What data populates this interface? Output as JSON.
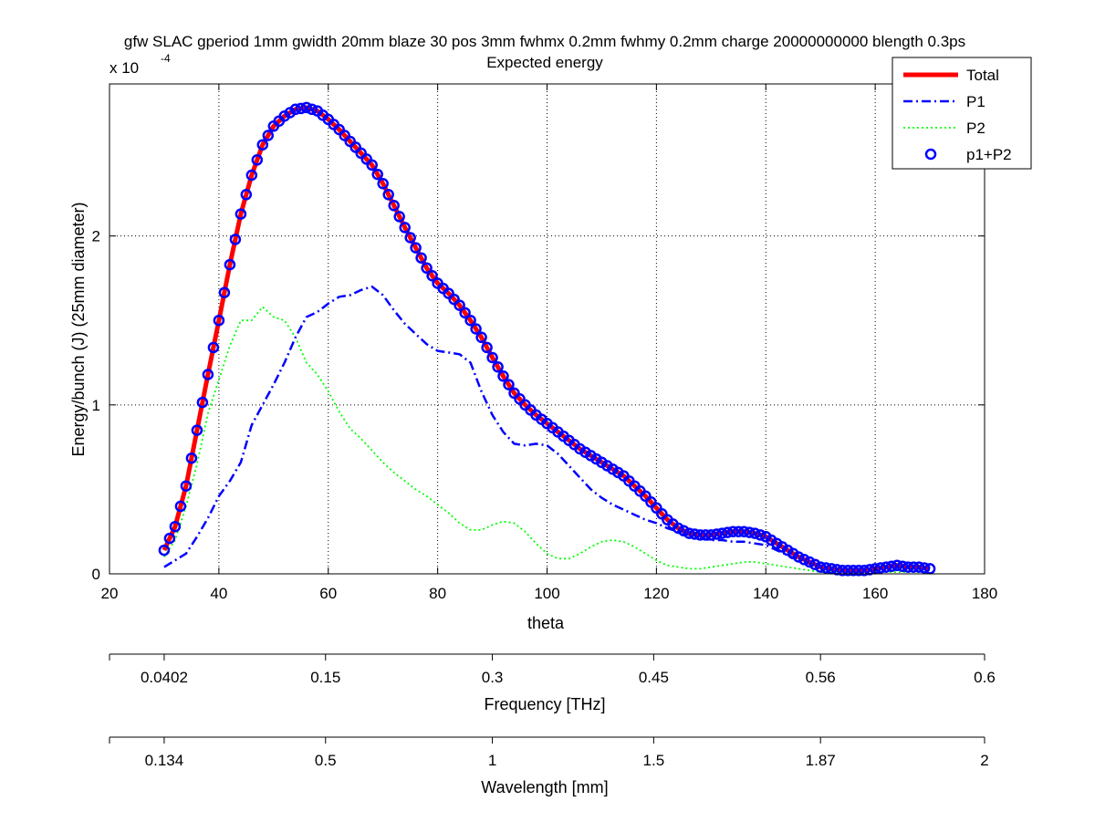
{
  "chart_data": {
    "type": "line",
    "title": "gfw SLAC gperiod 1mm gwidth 20mm blaze 30 pos 3mm fwhmx 0.2mm fwhmy 0.2mm charge 20000000000 blength 0.3ps",
    "subtitle": "Expected energy",
    "xlabel": "theta",
    "ylabel": "Energy/bunch (J) (25mm diameter)",
    "y_exponent_label": "x 10",
    "y_exponent_power": "-4",
    "xlim": [
      20,
      180
    ],
    "ylim": [
      0,
      2.9
    ],
    "y_scale_multiplier": 0.0001,
    "grid": true,
    "legend_position": "top-right",
    "x_ticks": [
      "20",
      "40",
      "60",
      "80",
      "100",
      "120",
      "140",
      "160",
      "180"
    ],
    "y_ticks": [
      "0",
      "1",
      "2"
    ],
    "secondary_axes": [
      {
        "label": "Frequency [THz]",
        "ticks": [
          {
            "theta": 30,
            "label": "0.0402"
          },
          {
            "theta": 59.5,
            "label": "0.15"
          },
          {
            "theta": 90,
            "label": "0.3"
          },
          {
            "theta": 119.5,
            "label": "0.45"
          },
          {
            "theta": 150,
            "label": "0.56"
          },
          {
            "theta": 180,
            "label": "0.6"
          }
        ]
      },
      {
        "label": "Wavelength [mm]",
        "ticks": [
          {
            "theta": 30,
            "label": "0.134"
          },
          {
            "theta": 59.5,
            "label": "0.5"
          },
          {
            "theta": 90,
            "label": "1"
          },
          {
            "theta": 119.5,
            "label": "1.5"
          },
          {
            "theta": 150,
            "label": "1.87"
          },
          {
            "theta": 180,
            "label": "2"
          }
        ]
      }
    ],
    "series": [
      {
        "name": "Total",
        "color": "#ff0000",
        "style": "solid",
        "points": [
          [
            30,
            0.14
          ],
          [
            32,
            0.28
          ],
          [
            34,
            0.52
          ],
          [
            36,
            0.85
          ],
          [
            38,
            1.18
          ],
          [
            40,
            1.5
          ],
          [
            42,
            1.83
          ],
          [
            44,
            2.13
          ],
          [
            46,
            2.36
          ],
          [
            48,
            2.54
          ],
          [
            50,
            2.65
          ],
          [
            52,
            2.71
          ],
          [
            54,
            2.75
          ],
          [
            56,
            2.76
          ],
          [
            58,
            2.74
          ],
          [
            60,
            2.69
          ],
          [
            62,
            2.63
          ],
          [
            64,
            2.56
          ],
          [
            66,
            2.49
          ],
          [
            68,
            2.42
          ],
          [
            70,
            2.31
          ],
          [
            72,
            2.18
          ],
          [
            74,
            2.05
          ],
          [
            76,
            1.93
          ],
          [
            78,
            1.81
          ],
          [
            80,
            1.72
          ],
          [
            82,
            1.66
          ],
          [
            84,
            1.59
          ],
          [
            86,
            1.5
          ],
          [
            88,
            1.4
          ],
          [
            90,
            1.28
          ],
          [
            92,
            1.17
          ],
          [
            94,
            1.07
          ],
          [
            96,
            1.0
          ],
          [
            98,
            0.94
          ],
          [
            100,
            0.89
          ],
          [
            102,
            0.84
          ],
          [
            104,
            0.79
          ],
          [
            106,
            0.74
          ],
          [
            108,
            0.7
          ],
          [
            110,
            0.66
          ],
          [
            112,
            0.62
          ],
          [
            114,
            0.58
          ],
          [
            116,
            0.52
          ],
          [
            118,
            0.46
          ],
          [
            120,
            0.39
          ],
          [
            122,
            0.32
          ],
          [
            124,
            0.27
          ],
          [
            126,
            0.24
          ],
          [
            128,
            0.23
          ],
          [
            130,
            0.23
          ],
          [
            132,
            0.24
          ],
          [
            134,
            0.25
          ],
          [
            136,
            0.25
          ],
          [
            138,
            0.24
          ],
          [
            140,
            0.22
          ],
          [
            142,
            0.18
          ],
          [
            144,
            0.14
          ],
          [
            146,
            0.1
          ],
          [
            148,
            0.07
          ],
          [
            150,
            0.04
          ],
          [
            152,
            0.03
          ],
          [
            154,
            0.02
          ],
          [
            156,
            0.02
          ],
          [
            158,
            0.02
          ],
          [
            160,
            0.03
          ],
          [
            162,
            0.04
          ],
          [
            164,
            0.05
          ],
          [
            166,
            0.04
          ],
          [
            168,
            0.04
          ],
          [
            170,
            0.03
          ]
        ]
      },
      {
        "name": "P1",
        "color": "#0000ff",
        "style": "dashdot",
        "points": [
          [
            30,
            0.04
          ],
          [
            32,
            0.08
          ],
          [
            34,
            0.12
          ],
          [
            36,
            0.22
          ],
          [
            38,
            0.33
          ],
          [
            40,
            0.46
          ],
          [
            42,
            0.55
          ],
          [
            44,
            0.66
          ],
          [
            46,
            0.88
          ],
          [
            48,
            1.0
          ],
          [
            50,
            1.12
          ],
          [
            52,
            1.25
          ],
          [
            54,
            1.4
          ],
          [
            56,
            1.52
          ],
          [
            58,
            1.55
          ],
          [
            60,
            1.6
          ],
          [
            62,
            1.64
          ],
          [
            64,
            1.65
          ],
          [
            66,
            1.68
          ],
          [
            68,
            1.7
          ],
          [
            70,
            1.65
          ],
          [
            72,
            1.56
          ],
          [
            74,
            1.48
          ],
          [
            76,
            1.42
          ],
          [
            78,
            1.36
          ],
          [
            80,
            1.32
          ],
          [
            82,
            1.31
          ],
          [
            84,
            1.3
          ],
          [
            86,
            1.25
          ],
          [
            88,
            1.08
          ],
          [
            90,
            0.94
          ],
          [
            92,
            0.84
          ],
          [
            94,
            0.77
          ],
          [
            96,
            0.76
          ],
          [
            98,
            0.77
          ],
          [
            100,
            0.76
          ],
          [
            102,
            0.71
          ],
          [
            104,
            0.64
          ],
          [
            106,
            0.57
          ],
          [
            108,
            0.5
          ],
          [
            110,
            0.45
          ],
          [
            112,
            0.41
          ],
          [
            114,
            0.38
          ],
          [
            116,
            0.35
          ],
          [
            118,
            0.32
          ],
          [
            120,
            0.3
          ],
          [
            122,
            0.27
          ],
          [
            124,
            0.25
          ],
          [
            126,
            0.23
          ],
          [
            128,
            0.21
          ],
          [
            130,
            0.2
          ],
          [
            132,
            0.2
          ],
          [
            134,
            0.19
          ],
          [
            136,
            0.19
          ],
          [
            138,
            0.18
          ],
          [
            140,
            0.17
          ],
          [
            142,
            0.14
          ],
          [
            144,
            0.11
          ],
          [
            146,
            0.08
          ],
          [
            148,
            0.06
          ],
          [
            150,
            0.04
          ],
          [
            152,
            0.03
          ],
          [
            154,
            0.02
          ],
          [
            156,
            0.02
          ],
          [
            158,
            0.02
          ],
          [
            160,
            0.03
          ],
          [
            162,
            0.04
          ],
          [
            164,
            0.05
          ],
          [
            166,
            0.04
          ],
          [
            168,
            0.04
          ],
          [
            170,
            0.03
          ]
        ]
      },
      {
        "name": "P2",
        "color": "#00ff00",
        "style": "dotted",
        "points": [
          [
            30,
            0.1
          ],
          [
            32,
            0.2
          ],
          [
            34,
            0.4
          ],
          [
            36,
            0.65
          ],
          [
            38,
            0.95
          ],
          [
            40,
            1.15
          ],
          [
            42,
            1.35
          ],
          [
            44,
            1.5
          ],
          [
            46,
            1.5
          ],
          [
            48,
            1.58
          ],
          [
            50,
            1.52
          ],
          [
            52,
            1.5
          ],
          [
            54,
            1.4
          ],
          [
            56,
            1.25
          ],
          [
            58,
            1.18
          ],
          [
            60,
            1.08
          ],
          [
            62,
            0.96
          ],
          [
            64,
            0.86
          ],
          [
            66,
            0.8
          ],
          [
            68,
            0.73
          ],
          [
            70,
            0.66
          ],
          [
            72,
            0.6
          ],
          [
            74,
            0.55
          ],
          [
            76,
            0.5
          ],
          [
            78,
            0.46
          ],
          [
            80,
            0.41
          ],
          [
            82,
            0.36
          ],
          [
            84,
            0.3
          ],
          [
            86,
            0.26
          ],
          [
            88,
            0.26
          ],
          [
            90,
            0.29
          ],
          [
            92,
            0.31
          ],
          [
            94,
            0.3
          ],
          [
            96,
            0.25
          ],
          [
            98,
            0.18
          ],
          [
            100,
            0.12
          ],
          [
            102,
            0.09
          ],
          [
            104,
            0.09
          ],
          [
            106,
            0.12
          ],
          [
            108,
            0.16
          ],
          [
            110,
            0.19
          ],
          [
            112,
            0.2
          ],
          [
            114,
            0.19
          ],
          [
            116,
            0.16
          ],
          [
            118,
            0.12
          ],
          [
            120,
            0.08
          ],
          [
            122,
            0.05
          ],
          [
            124,
            0.04
          ],
          [
            126,
            0.03
          ],
          [
            128,
            0.03
          ],
          [
            130,
            0.04
          ],
          [
            132,
            0.05
          ],
          [
            134,
            0.06
          ],
          [
            136,
            0.07
          ],
          [
            138,
            0.07
          ],
          [
            140,
            0.06
          ],
          [
            142,
            0.05
          ],
          [
            144,
            0.04
          ],
          [
            146,
            0.03
          ],
          [
            148,
            0.02
          ],
          [
            150,
            0.01
          ],
          [
            152,
            0.01
          ],
          [
            154,
            0.01
          ],
          [
            156,
            0.01
          ],
          [
            158,
            0.01
          ],
          [
            160,
            0.01
          ],
          [
            162,
            0.01
          ],
          [
            164,
            0.01
          ],
          [
            166,
            0.01
          ],
          [
            168,
            0.01
          ],
          [
            170,
            0.01
          ]
        ]
      },
      {
        "name": "p1+P2",
        "color": "#0000ff",
        "style": "circle-markers",
        "marker_step_theta": 1
      }
    ]
  }
}
